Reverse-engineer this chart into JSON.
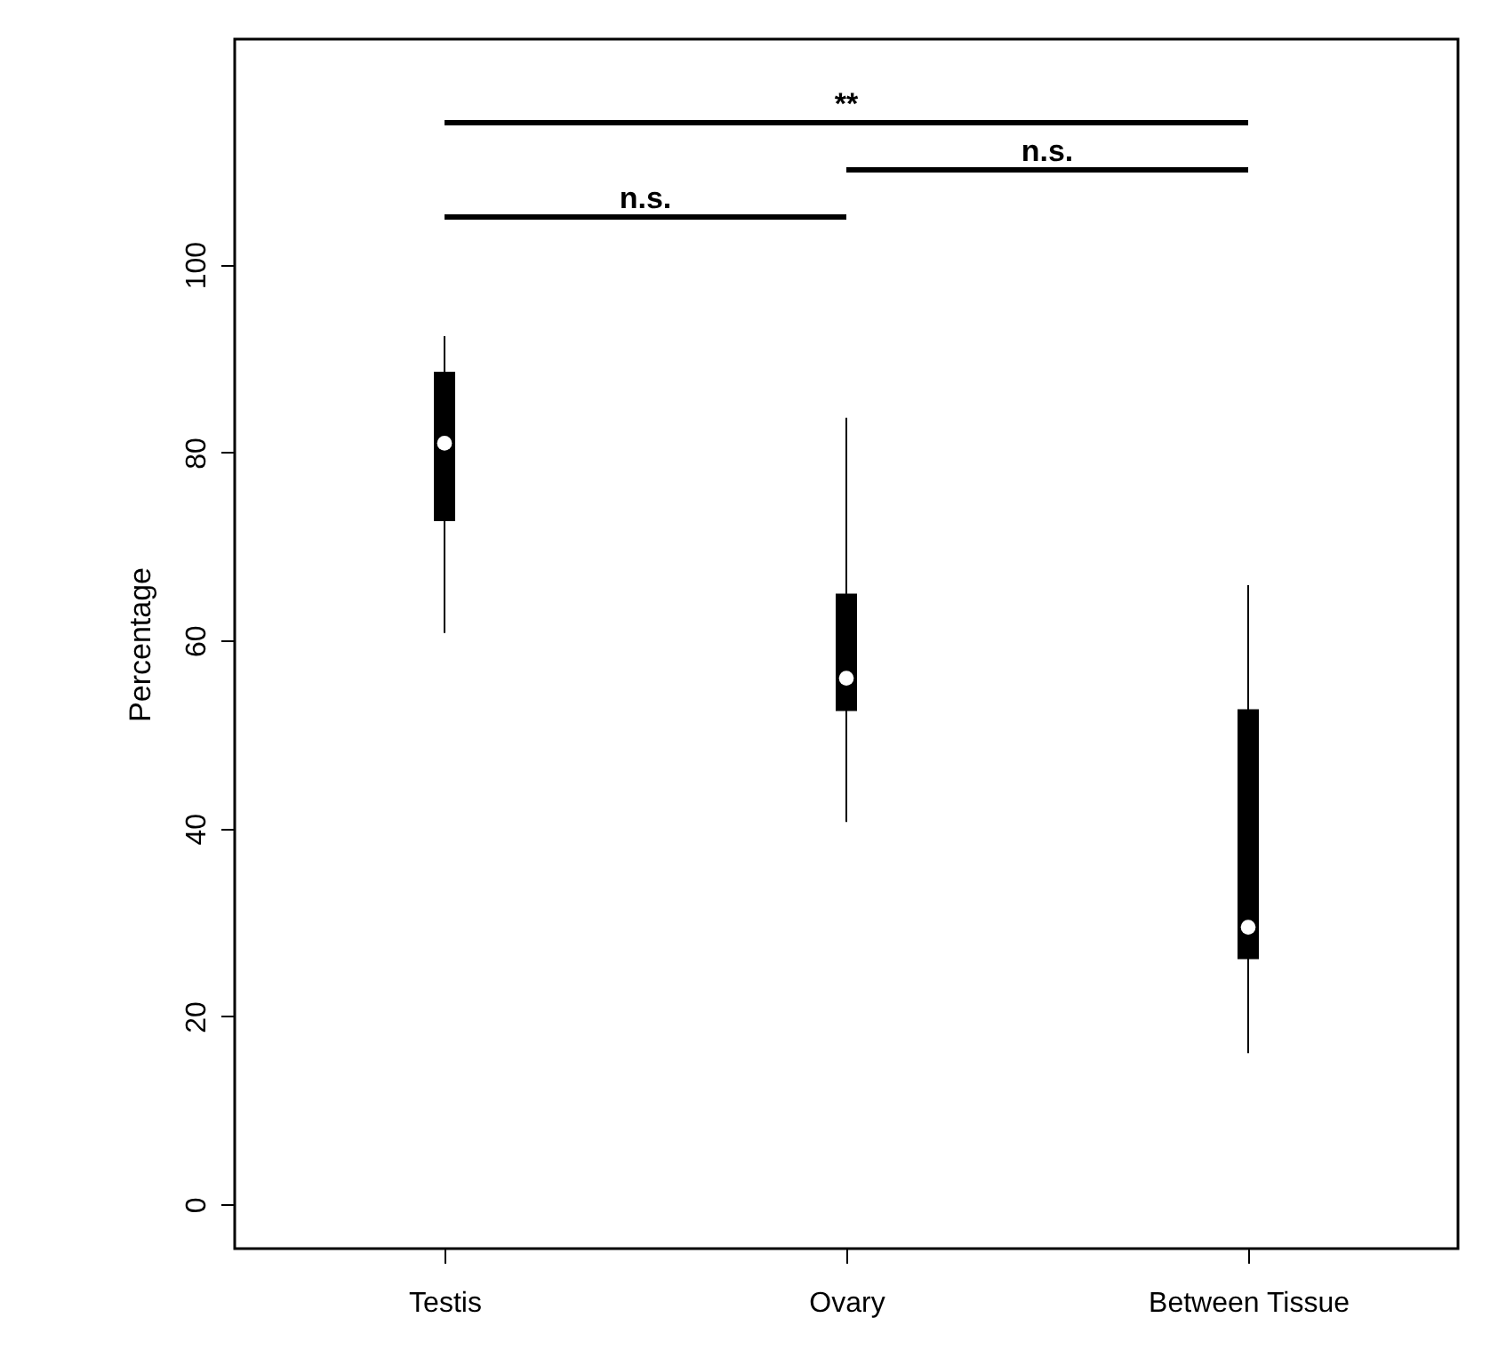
{
  "chart_data": {
    "type": "box",
    "ylabel": "Percentage",
    "categories": [
      "Testis",
      "Ovary",
      "Between Tissue"
    ],
    "boxes": [
      {
        "low": 60.8,
        "q1": 72.7,
        "median": 81,
        "q3": 88.6,
        "high": 92.4
      },
      {
        "low": 40.7,
        "q1": 52.5,
        "median": 56,
        "q3": 65,
        "high": 83.7
      },
      {
        "low": 16.1,
        "q1": 26.1,
        "median": 29.5,
        "q3": 52.7,
        "high": 65.9
      }
    ],
    "ylim": [
      -4.7,
      124
    ],
    "yticks": [
      0,
      20,
      40,
      60,
      80,
      100
    ],
    "grid": false,
    "annotations": [
      "n.s.",
      "n.s.",
      "**"
    ]
  }
}
